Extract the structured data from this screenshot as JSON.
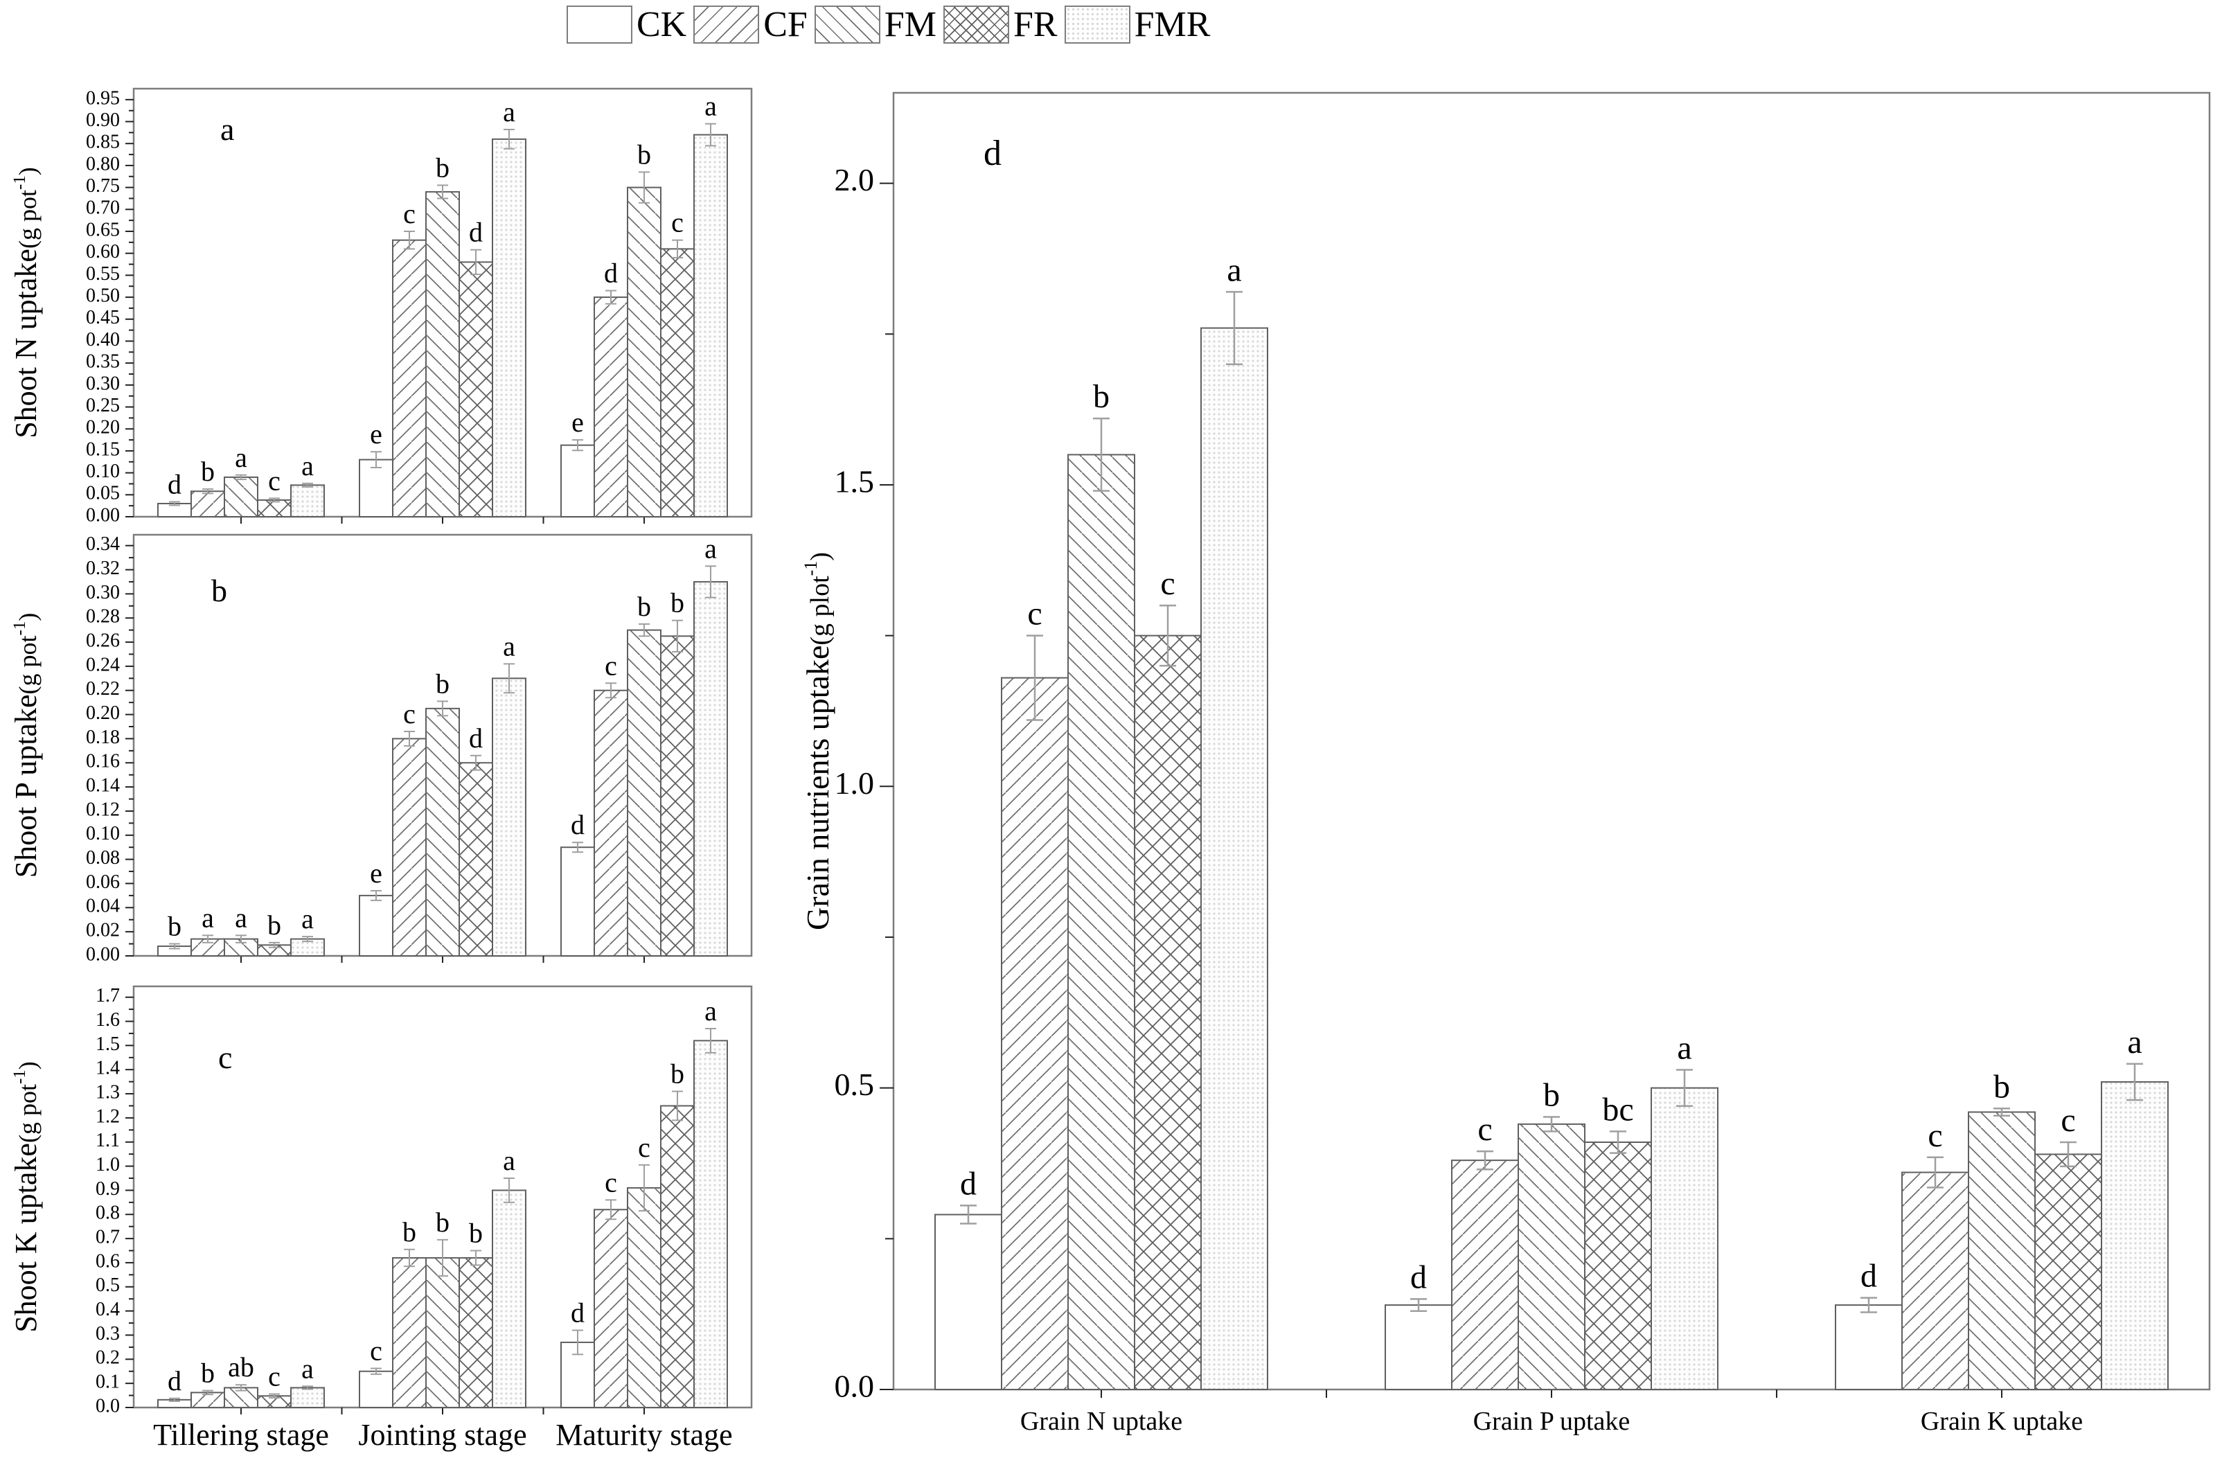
{
  "legend": {
    "items": [
      {
        "label": "CK",
        "pattern": "ck"
      },
      {
        "label": "CF",
        "pattern": "cf"
      },
      {
        "label": "FM",
        "pattern": "fm"
      },
      {
        "label": "FR",
        "pattern": "fr"
      },
      {
        "label": "FMR",
        "pattern": "fmr"
      }
    ]
  },
  "colors": {
    "frame": "#7d7d7d",
    "bar_stroke": "#5f5f5f",
    "hatch_line": "#6e6e6e",
    "dot_fill": "#d9d9d9",
    "error_bar": "#9f9f9f",
    "text": "#000000"
  },
  "treatments": [
    "CK",
    "CF",
    "FM",
    "FR",
    "FMR"
  ],
  "chart_data": [
    {
      "id": "a",
      "type": "bar",
      "panel_label": "a",
      "ylabel": "Shoot N uptake(g pot-1)",
      "ylabel_parts": [
        "Shoot N uptake",
        "(g pot",
        "-1",
        ")"
      ],
      "axis": {
        "ymin": 0,
        "ymax_tick": 0.95,
        "tick_step": 0.05,
        "minor_step": 0.025,
        "decimals": 2,
        "axis_max": 0.975
      },
      "categories": [
        "Tillering stage",
        "Jointing stage",
        "Maturity stage"
      ],
      "show_xlabels": false,
      "grid": false,
      "groups": [
        {
          "category": "Tillering stage",
          "values": [
            0.03,
            0.058,
            0.09,
            0.038,
            0.072
          ],
          "errors": [
            0.004,
            0.005,
            0.005,
            0.004,
            0.004
          ],
          "letters": [
            "d",
            "b",
            "a",
            "c",
            "a"
          ]
        },
        {
          "category": "Jointing stage",
          "values": [
            0.13,
            0.63,
            0.74,
            0.58,
            0.86
          ],
          "errors": [
            0.018,
            0.02,
            0.015,
            0.028,
            0.022
          ],
          "letters": [
            "e",
            "c",
            "b",
            "d",
            "a"
          ]
        },
        {
          "category": "Maturity stage",
          "values": [
            0.163,
            0.5,
            0.75,
            0.61,
            0.87
          ],
          "errors": [
            0.012,
            0.015,
            0.035,
            0.02,
            0.025
          ],
          "letters": [
            "e",
            "d",
            "b",
            "c",
            "a"
          ]
        }
      ]
    },
    {
      "id": "b",
      "type": "bar",
      "panel_label": "b",
      "ylabel": "Shoot  P uptake(g pot-1)",
      "ylabel_parts": [
        "Shoot  P uptake",
        "(g pot",
        "-1",
        ")"
      ],
      "axis": {
        "ymin": 0,
        "ymax_tick": 0.34,
        "tick_step": 0.02,
        "minor_step": 0.01,
        "decimals": 2,
        "axis_max": 0.349
      },
      "categories": [
        "Tillering stage",
        "Jointing stage",
        "Maturity stage"
      ],
      "show_xlabels": false,
      "grid": false,
      "groups": [
        {
          "category": "Tillering stage",
          "values": [
            0.008,
            0.014,
            0.014,
            0.009,
            0.014
          ],
          "errors": [
            0.002,
            0.003,
            0.003,
            0.002,
            0.002
          ],
          "letters": [
            "b",
            "a",
            "a",
            "b",
            "a"
          ]
        },
        {
          "category": "Jointing stage",
          "values": [
            0.05,
            0.18,
            0.205,
            0.16,
            0.23
          ],
          "errors": [
            0.004,
            0.006,
            0.006,
            0.006,
            0.012
          ],
          "letters": [
            "e",
            "c",
            "b",
            "d",
            "a"
          ]
        },
        {
          "category": "Maturity stage",
          "values": [
            0.09,
            0.22,
            0.27,
            0.265,
            0.31
          ],
          "errors": [
            0.004,
            0.006,
            0.005,
            0.013,
            0.013
          ],
          "letters": [
            "d",
            "c",
            "b",
            "b",
            "a"
          ]
        }
      ]
    },
    {
      "id": "c",
      "type": "bar",
      "panel_label": "c",
      "ylabel": "Shoot K uptake(g pot-1)",
      "ylabel_parts": [
        "Shoot K uptake",
        "(g pot",
        "-1",
        ")"
      ],
      "axis": {
        "ymin": 0,
        "ymax_tick": 1.7,
        "tick_step": 0.1,
        "minor_step": 0.05,
        "decimals": 1,
        "axis_max": 1.745
      },
      "categories": [
        "Tillering stage",
        "Jointing stage",
        "Maturity stage"
      ],
      "show_xlabels": true,
      "grid": false,
      "groups": [
        {
          "category": "Tillering stage",
          "values": [
            0.032,
            0.062,
            0.082,
            0.048,
            0.082
          ],
          "errors": [
            0.006,
            0.008,
            0.012,
            0.008,
            0.006
          ],
          "letters": [
            "d",
            "b",
            "ab",
            "c",
            "a"
          ]
        },
        {
          "category": "Jointing stage",
          "values": [
            0.15,
            0.62,
            0.62,
            0.62,
            0.9
          ],
          "errors": [
            0.012,
            0.035,
            0.075,
            0.03,
            0.05
          ],
          "letters": [
            "c",
            "b",
            "b",
            "b",
            "a"
          ]
        },
        {
          "category": "Maturity stage",
          "values": [
            0.27,
            0.82,
            0.91,
            1.25,
            1.52
          ],
          "errors": [
            0.05,
            0.04,
            0.095,
            0.06,
            0.05
          ],
          "letters": [
            "d",
            "c",
            "c",
            "b",
            "a"
          ]
        }
      ]
    },
    {
      "id": "d",
      "type": "bar",
      "panel_label": "d",
      "ylabel": "Grain nutrients uptake(g plot-1)",
      "ylabel_parts": [
        "Grain nutrients uptake",
        "(g plot",
        "-1",
        ")"
      ],
      "axis": {
        "ymin": 0,
        "ymax_tick": 2.0,
        "tick_step": 0.5,
        "minor_step": 0.25,
        "decimals": 1,
        "axis_max": 2.15
      },
      "categories": [
        "Grain N uptake",
        "Grain P uptake",
        "Grain K uptake"
      ],
      "show_xlabels": true,
      "grid": false,
      "groups": [
        {
          "category": "Grain N uptake",
          "values": [
            0.29,
            1.18,
            1.55,
            1.25,
            1.76
          ],
          "errors": [
            0.015,
            0.07,
            0.06,
            0.05,
            0.06
          ],
          "letters": [
            "d",
            "c",
            "b",
            "c",
            "a"
          ]
        },
        {
          "category": "Grain P uptake",
          "values": [
            0.14,
            0.38,
            0.44,
            0.41,
            0.5
          ],
          "errors": [
            0.01,
            0.015,
            0.012,
            0.018,
            0.03
          ],
          "letters": [
            "d",
            "c",
            "b",
            "bc",
            "a"
          ]
        },
        {
          "category": "Grain K uptake",
          "values": [
            0.14,
            0.36,
            0.46,
            0.39,
            0.51
          ],
          "errors": [
            0.012,
            0.025,
            0.006,
            0.02,
            0.03
          ],
          "letters": [
            "d",
            "c",
            "b",
            "c",
            "a"
          ]
        }
      ]
    }
  ]
}
